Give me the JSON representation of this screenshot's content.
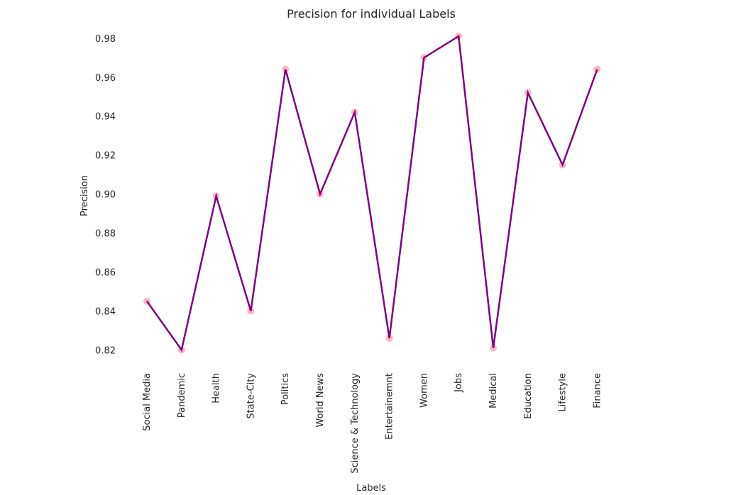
{
  "chart_data": {
    "type": "line",
    "title": "Precision for individual Labels",
    "xlabel": "Labels",
    "ylabel": "Precision",
    "categories": [
      "Social Media",
      "Pandemic",
      "Health",
      "State-City",
      "Politics",
      "World News",
      "Science & Technology",
      "Entertainemnt",
      "Women",
      "Jobs",
      "Medical",
      "Education",
      "Lifestyle",
      "Finance"
    ],
    "values": [
      0.845,
      0.82,
      0.899,
      0.84,
      0.964,
      0.9,
      0.942,
      0.826,
      0.97,
      0.981,
      0.821,
      0.952,
      0.915,
      0.964
    ],
    "yticks": [
      "0.82",
      "0.84",
      "0.86",
      "0.88",
      "0.90",
      "0.92",
      "0.94",
      "0.96",
      "0.98"
    ],
    "ylim": [
      0.8125,
      0.9865
    ],
    "grid": false,
    "legend": false,
    "colors": {
      "line": "#800080",
      "marker": "#ffb6c1"
    }
  }
}
